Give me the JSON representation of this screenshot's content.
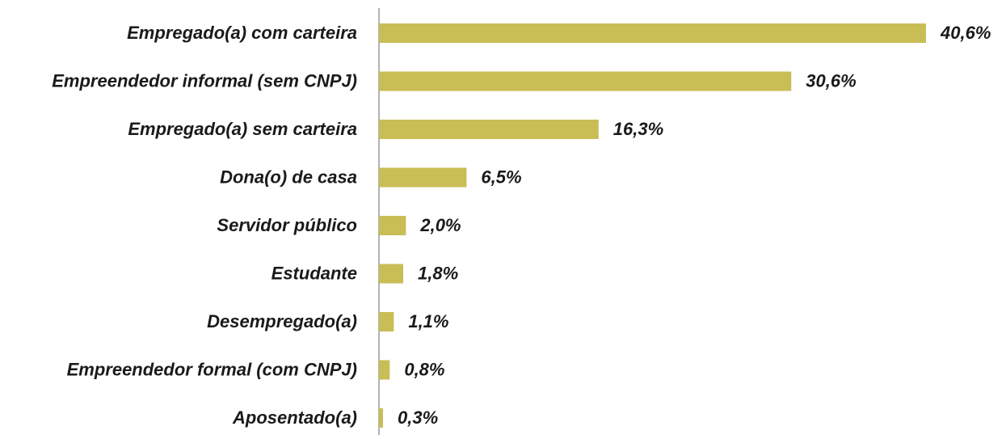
{
  "chart_data": {
    "type": "bar",
    "orientation": "horizontal",
    "categories": [
      "Empregado(a) com carteira",
      "Empreendedor informal (sem CNPJ)",
      "Empregado(a) sem carteira",
      "Dona(o) de casa",
      "Servidor público",
      "Estudante",
      "Desempregado(a)",
      "Empreendedor formal (com CNPJ)",
      "Aposentado(a)"
    ],
    "values": [
      40.6,
      30.6,
      16.3,
      6.5,
      2.0,
      1.8,
      1.1,
      0.8,
      0.3
    ],
    "value_labels": [
      "40,6%",
      "30,6%",
      "16,3%",
      "6,5%",
      "2,0%",
      "1,8%",
      "1,1%",
      "0,8%",
      "0,3%"
    ],
    "color": "#c9bd56"
  }
}
